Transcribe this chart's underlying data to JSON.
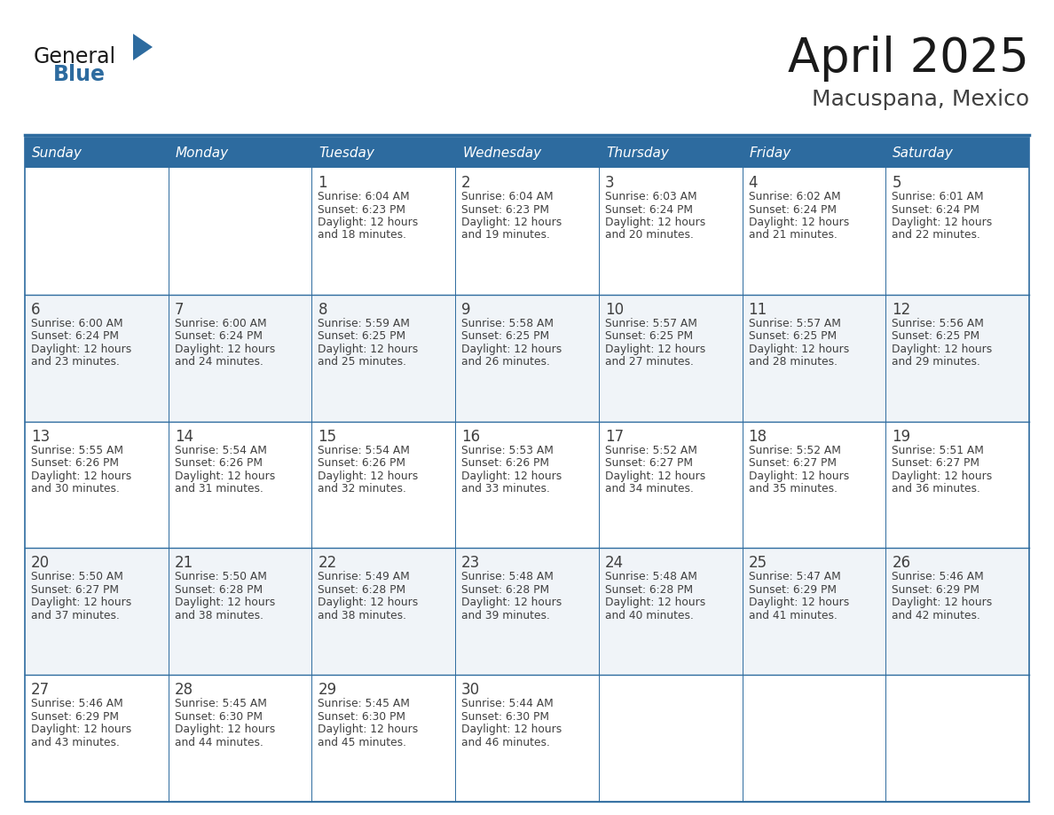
{
  "title": "April 2025",
  "subtitle": "Macuspana, Mexico",
  "days_of_week": [
    "Sunday",
    "Monday",
    "Tuesday",
    "Wednesday",
    "Thursday",
    "Friday",
    "Saturday"
  ],
  "header_bg": "#2D6B9F",
  "header_text_color": "#FFFFFF",
  "cell_bg": "#FFFFFF",
  "cell_bg_alt": "#F0F4F8",
  "border_color": "#2D6B9F",
  "text_color": "#404040",
  "title_color": "#1a1a1a",
  "subtitle_color": "#404040",
  "logo_general_color": "#1a1a1a",
  "logo_blue_color": "#2D6B9F",
  "calendar_data": [
    [
      {
        "day": 0,
        "info": ""
      },
      {
        "day": 0,
        "info": ""
      },
      {
        "day": 1,
        "info": "Sunrise: 6:04 AM\nSunset: 6:23 PM\nDaylight: 12 hours\nand 18 minutes."
      },
      {
        "day": 2,
        "info": "Sunrise: 6:04 AM\nSunset: 6:23 PM\nDaylight: 12 hours\nand 19 minutes."
      },
      {
        "day": 3,
        "info": "Sunrise: 6:03 AM\nSunset: 6:24 PM\nDaylight: 12 hours\nand 20 minutes."
      },
      {
        "day": 4,
        "info": "Sunrise: 6:02 AM\nSunset: 6:24 PM\nDaylight: 12 hours\nand 21 minutes."
      },
      {
        "day": 5,
        "info": "Sunrise: 6:01 AM\nSunset: 6:24 PM\nDaylight: 12 hours\nand 22 minutes."
      }
    ],
    [
      {
        "day": 6,
        "info": "Sunrise: 6:00 AM\nSunset: 6:24 PM\nDaylight: 12 hours\nand 23 minutes."
      },
      {
        "day": 7,
        "info": "Sunrise: 6:00 AM\nSunset: 6:24 PM\nDaylight: 12 hours\nand 24 minutes."
      },
      {
        "day": 8,
        "info": "Sunrise: 5:59 AM\nSunset: 6:25 PM\nDaylight: 12 hours\nand 25 minutes."
      },
      {
        "day": 9,
        "info": "Sunrise: 5:58 AM\nSunset: 6:25 PM\nDaylight: 12 hours\nand 26 minutes."
      },
      {
        "day": 10,
        "info": "Sunrise: 5:57 AM\nSunset: 6:25 PM\nDaylight: 12 hours\nand 27 minutes."
      },
      {
        "day": 11,
        "info": "Sunrise: 5:57 AM\nSunset: 6:25 PM\nDaylight: 12 hours\nand 28 minutes."
      },
      {
        "day": 12,
        "info": "Sunrise: 5:56 AM\nSunset: 6:25 PM\nDaylight: 12 hours\nand 29 minutes."
      }
    ],
    [
      {
        "day": 13,
        "info": "Sunrise: 5:55 AM\nSunset: 6:26 PM\nDaylight: 12 hours\nand 30 minutes."
      },
      {
        "day": 14,
        "info": "Sunrise: 5:54 AM\nSunset: 6:26 PM\nDaylight: 12 hours\nand 31 minutes."
      },
      {
        "day": 15,
        "info": "Sunrise: 5:54 AM\nSunset: 6:26 PM\nDaylight: 12 hours\nand 32 minutes."
      },
      {
        "day": 16,
        "info": "Sunrise: 5:53 AM\nSunset: 6:26 PM\nDaylight: 12 hours\nand 33 minutes."
      },
      {
        "day": 17,
        "info": "Sunrise: 5:52 AM\nSunset: 6:27 PM\nDaylight: 12 hours\nand 34 minutes."
      },
      {
        "day": 18,
        "info": "Sunrise: 5:52 AM\nSunset: 6:27 PM\nDaylight: 12 hours\nand 35 minutes."
      },
      {
        "day": 19,
        "info": "Sunrise: 5:51 AM\nSunset: 6:27 PM\nDaylight: 12 hours\nand 36 minutes."
      }
    ],
    [
      {
        "day": 20,
        "info": "Sunrise: 5:50 AM\nSunset: 6:27 PM\nDaylight: 12 hours\nand 37 minutes."
      },
      {
        "day": 21,
        "info": "Sunrise: 5:50 AM\nSunset: 6:28 PM\nDaylight: 12 hours\nand 38 minutes."
      },
      {
        "day": 22,
        "info": "Sunrise: 5:49 AM\nSunset: 6:28 PM\nDaylight: 12 hours\nand 38 minutes."
      },
      {
        "day": 23,
        "info": "Sunrise: 5:48 AM\nSunset: 6:28 PM\nDaylight: 12 hours\nand 39 minutes."
      },
      {
        "day": 24,
        "info": "Sunrise: 5:48 AM\nSunset: 6:28 PM\nDaylight: 12 hours\nand 40 minutes."
      },
      {
        "day": 25,
        "info": "Sunrise: 5:47 AM\nSunset: 6:29 PM\nDaylight: 12 hours\nand 41 minutes."
      },
      {
        "day": 26,
        "info": "Sunrise: 5:46 AM\nSunset: 6:29 PM\nDaylight: 12 hours\nand 42 minutes."
      }
    ],
    [
      {
        "day": 27,
        "info": "Sunrise: 5:46 AM\nSunset: 6:29 PM\nDaylight: 12 hours\nand 43 minutes."
      },
      {
        "day": 28,
        "info": "Sunrise: 5:45 AM\nSunset: 6:30 PM\nDaylight: 12 hours\nand 44 minutes."
      },
      {
        "day": 29,
        "info": "Sunrise: 5:45 AM\nSunset: 6:30 PM\nDaylight: 12 hours\nand 45 minutes."
      },
      {
        "day": 30,
        "info": "Sunrise: 5:44 AM\nSunset: 6:30 PM\nDaylight: 12 hours\nand 46 minutes."
      },
      {
        "day": 0,
        "info": ""
      },
      {
        "day": 0,
        "info": ""
      },
      {
        "day": 0,
        "info": ""
      }
    ]
  ]
}
